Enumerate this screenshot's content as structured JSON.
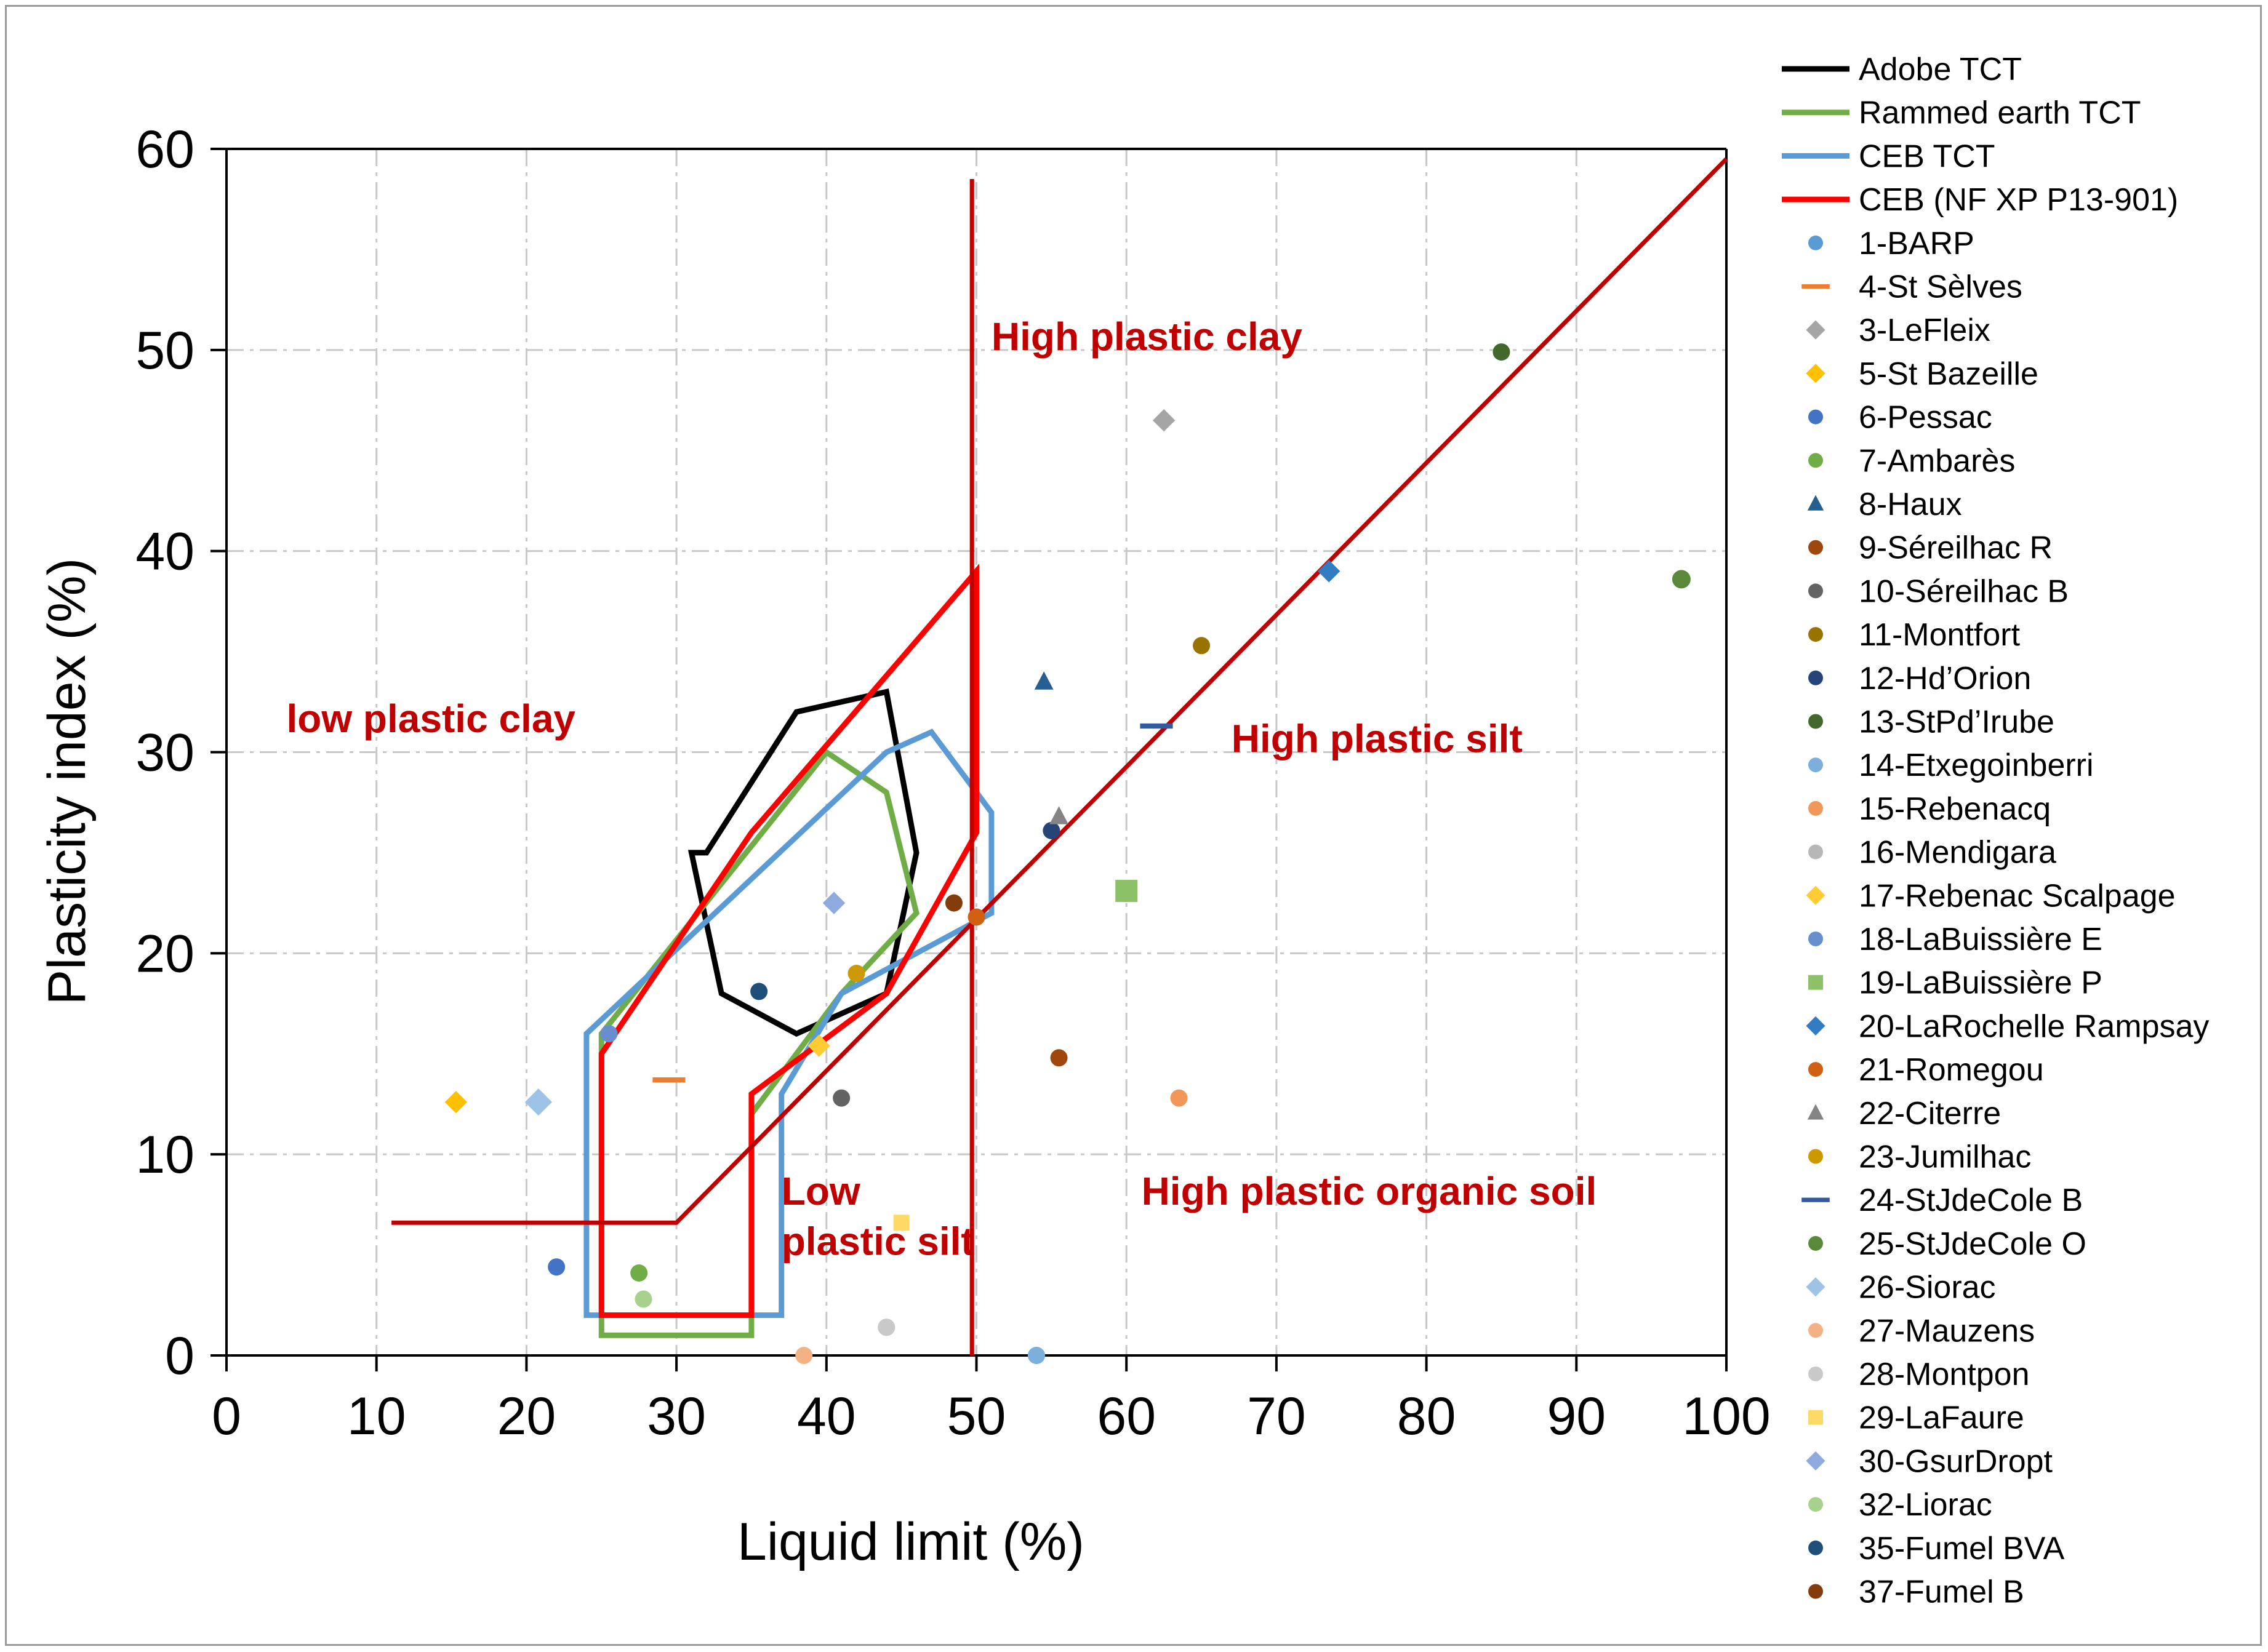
{
  "chart_data": {
    "type": "scatter",
    "xlabel": "Liquid limit (%)",
    "ylabel": "Plasticity index (%)",
    "xlim": [
      0,
      100
    ],
    "ylim": [
      0,
      60
    ],
    "x_ticks": [
      0,
      10,
      20,
      30,
      40,
      50,
      60,
      70,
      80,
      90,
      100
    ],
    "y_ticks": [
      0,
      10,
      20,
      30,
      40,
      50,
      60
    ],
    "x_tick_labels": [
      "0",
      "10",
      "20",
      "30",
      "40",
      "50",
      "60",
      "70",
      "80",
      "90",
      "100"
    ],
    "y_tick_labels": [
      "0",
      "10",
      "20",
      "30",
      "40",
      "50",
      "60"
    ],
    "grid": true,
    "legend_position": "right",
    "region_labels": [
      {
        "text": "High plastic clay",
        "x": 51,
        "y": 50
      },
      {
        "text": "low plastic clay",
        "x": 4,
        "y": 31
      },
      {
        "text": "High plastic silt",
        "x": 67,
        "y": 30
      },
      {
        "text": "Low",
        "x": 37,
        "y": 7.5
      },
      {
        "text": "plastic silt",
        "x": 37,
        "y": 5
      },
      {
        "text": "High plastic organic soil",
        "x": 61,
        "y": 7.5
      }
    ],
    "lines": [
      {
        "name": "Adobe TCT",
        "color": "#000000",
        "legend": true,
        "closed": true,
        "x": [
          31,
          33,
          38,
          44,
          46,
          44,
          38,
          32
        ],
        "y": [
          25,
          18,
          16,
          18,
          25,
          33,
          32,
          25
        ]
      },
      {
        "name": "Rammed earth TCT",
        "color": "#70ad47",
        "legend": true,
        "closed": true,
        "x": [
          25,
          25,
          35,
          35,
          41,
          46,
          44,
          40,
          25
        ],
        "y": [
          16,
          1,
          1,
          12,
          18,
          22,
          28,
          30,
          16
        ]
      },
      {
        "name": "CEB TCT",
        "color": "#5b9bd5",
        "legend": true,
        "closed": true,
        "x": [
          24,
          24,
          37,
          37,
          41,
          51,
          51,
          47,
          44,
          24
        ],
        "y": [
          16,
          2,
          2,
          13,
          18,
          22,
          27,
          31,
          30,
          16
        ]
      },
      {
        "name": "CEB (NF XP P13-901)",
        "color": "#ff0000",
        "legend": true,
        "closed": true,
        "x": [
          25,
          25,
          35,
          35,
          44,
          50,
          50,
          35,
          25
        ],
        "y": [
          15,
          2,
          2,
          13,
          18,
          26,
          39,
          26,
          15
        ]
      },
      {
        "name": "Casagrande A-line",
        "color": "#c00000",
        "legend": false,
        "closed": false,
        "x": [
          11,
          30,
          100
        ],
        "y": [
          6.6,
          6.6,
          59.5
        ]
      },
      {
        "name": "Liquid limit 50 boundary",
        "color": "#c00000",
        "legend": false,
        "closed": false,
        "x": [
          49.7,
          49.7
        ],
        "y": [
          58.5,
          0
        ]
      }
    ],
    "series": [
      {
        "name": "1-BARP",
        "marker": "circle",
        "color": "#5b9bd5",
        "x": 54.0,
        "y": 0.0
      },
      {
        "name": "4-St Sèlves",
        "marker": "dash",
        "color": "#ed7d31",
        "x": 29.5,
        "y": 13.7
      },
      {
        "name": "3-LeFleix",
        "marker": "diamond",
        "color": "#a5a5a5",
        "x": 62.5,
        "y": 46.5
      },
      {
        "name": "5-St Bazeille",
        "marker": "diamond",
        "color": "#ffc000",
        "x": 15.3,
        "y": 12.6
      },
      {
        "name": "6-Pessac",
        "marker": "circle",
        "color": "#4472c4",
        "x": 22.0,
        "y": 4.4
      },
      {
        "name": "7-Ambarès",
        "marker": "circle",
        "color": "#70ad47",
        "x": 27.5,
        "y": 4.1
      },
      {
        "name": "8-Haux",
        "marker": "triangle",
        "color": "#255e91",
        "x": 54.5,
        "y": 33.5
      },
      {
        "name": "9-Séreilhac R",
        "marker": "circle",
        "color": "#9e480e",
        "x": 55.5,
        "y": 14.8
      },
      {
        "name": "10-Séreilhac B",
        "marker": "circle",
        "color": "#636363",
        "x": 41.0,
        "y": 12.8
      },
      {
        "name": "11-Montfort",
        "marker": "circle",
        "color": "#997300",
        "x": 65.0,
        "y": 35.3
      },
      {
        "name": "12-Hd’Orion",
        "marker": "circle",
        "color": "#264478",
        "x": 55.0,
        "y": 26.1
      },
      {
        "name": "13-StPd’Irube",
        "marker": "circle",
        "color": "#43682b",
        "x": 85.0,
        "y": 49.9
      },
      {
        "name": "14-Etxegoinberri",
        "marker": "circle",
        "color": "#7cafdd",
        "x": 54.0,
        "y": 0.0
      },
      {
        "name": "15-Rebenacq",
        "marker": "circle",
        "color": "#f1975a",
        "x": 63.5,
        "y": 12.8
      },
      {
        "name": "16-Mendigara",
        "marker": "circle",
        "color": "#b7b7b7",
        "x": 44.0,
        "y": 1.4
      },
      {
        "name": "17-Rebenac Scalpage",
        "marker": "diamond",
        "color": "#ffcd33",
        "x": 39.5,
        "y": 15.4
      },
      {
        "name": "18-LaBuissière E",
        "marker": "circle",
        "color": "#698ed0",
        "x": 25.5,
        "y": 16.0
      },
      {
        "name": "19-LaBuissière P",
        "marker": "square",
        "color": "#8cc168",
        "x": 60.0,
        "y": 23.1
      },
      {
        "name": "20-LaRochelle Rampsay",
        "marker": "diamond",
        "color": "#327dc2",
        "x": 73.5,
        "y": 39.0
      },
      {
        "name": "21-Romegou",
        "marker": "circle",
        "color": "#d26012",
        "x": 50.0,
        "y": 21.8
      },
      {
        "name": "22-Citerre",
        "marker": "triangle",
        "color": "#848484",
        "x": 55.5,
        "y": 26.8
      },
      {
        "name": "23-Jumilhac",
        "marker": "circle",
        "color": "#cc9a00",
        "x": 42.0,
        "y": 19.0
      },
      {
        "name": "24-StJdeCole B",
        "marker": "dash",
        "color": "#335aa1",
        "x": 62.0,
        "y": 31.3
      },
      {
        "name": "25-StJdeCole O",
        "marker": "circle",
        "color": "#5a8a39",
        "x": 97.0,
        "y": 38.6
      },
      {
        "name": "26-Siorac",
        "marker": "diamond",
        "color": "#9dc3e6",
        "x": 20.8,
        "y": 12.6
      },
      {
        "name": "27-Mauzens",
        "marker": "circle",
        "color": "#f4b183",
        "x": 38.5,
        "y": 0.0
      },
      {
        "name": "28-Montpon",
        "marker": "circle",
        "color": "#c9c9c9",
        "x": 44.0,
        "y": 1.4
      },
      {
        "name": "29-LaFaure",
        "marker": "square",
        "color": "#ffd966",
        "x": 45.0,
        "y": 6.6
      },
      {
        "name": "30-GsurDropt",
        "marker": "diamond",
        "color": "#8faadc",
        "x": 40.5,
        "y": 22.5
      },
      {
        "name": "32-Liorac",
        "marker": "circle",
        "color": "#a9d18e",
        "x": 27.8,
        "y": 2.8
      },
      {
        "name": "35-Fumel BVA",
        "marker": "circle",
        "color": "#1f4e79",
        "x": 35.5,
        "y": 18.1
      },
      {
        "name": "37-Fumel B",
        "marker": "circle",
        "color": "#843c0c",
        "x": 48.5,
        "y": 22.5
      }
    ]
  }
}
